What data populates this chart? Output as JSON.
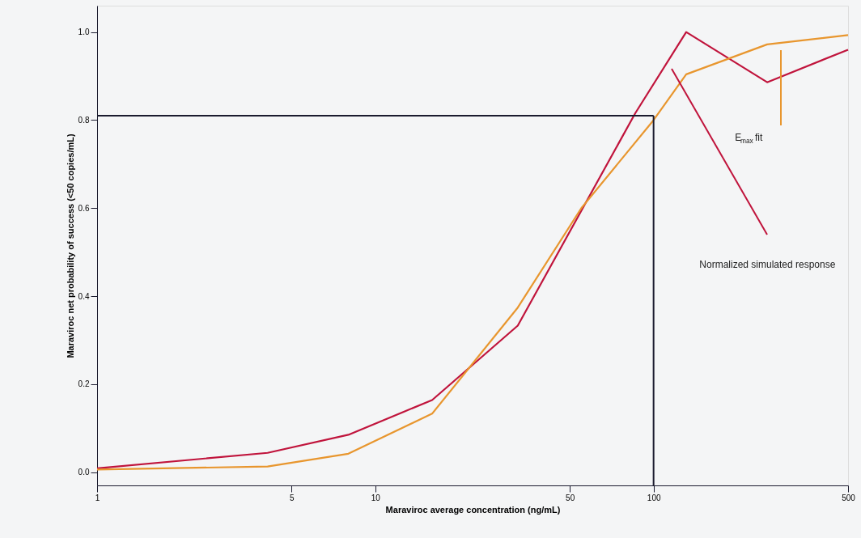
{
  "chart_data": {
    "type": "line",
    "xlabel": "Maraviroc average concentration (ng/mL)",
    "ylabel": "Maraviroc net probability of success (<50 copies/mL)",
    "series": [
      {
        "color": "#c0143c",
        "x": [
          1,
          4.1,
          8,
          16,
          32.5,
          86,
          131,
          256,
          500
        ],
        "values": [
          0.009,
          0.044,
          0.085,
          0.164,
          0.333,
          0.816,
          1.0,
          0.886,
          0.96
        ]
      },
      {
        "color": "#e8962e",
        "x": [
          1,
          4.1,
          8,
          16,
          32.5,
          55,
          100,
          131,
          256,
          500
        ],
        "values": [
          0.006,
          0.013,
          0.042,
          0.133,
          0.374,
          0.6,
          0.8,
          0.904,
          0.972,
          0.993
        ]
      }
    ],
    "log": "x",
    "xlim": [
      1,
      500
    ],
    "xticks": [
      1,
      5,
      10,
      50,
      100,
      500
    ],
    "ylim": [
      -0.03,
      1.06
    ],
    "yticks": [
      {
        "value": 0,
        "label": "0.0"
      },
      {
        "value": 0.2,
        "label": "0.2"
      },
      {
        "value": 0.4,
        "label": "0.4"
      },
      {
        "value": 0.6,
        "label": "0.6"
      },
      {
        "value": 0.8,
        "label": "0.8"
      },
      {
        "value": 1,
        "label": "1.0"
      }
    ],
    "grid": false,
    "marker": "none",
    "line_style": "solid",
    "ref_lines": [
      {
        "axis": "x",
        "value": 100,
        "color": "#1a1a2e"
      },
      {
        "axis": "y",
        "value": 0.81,
        "color": "#1a1a2e"
      }
    ],
    "annotations": [
      "Normalized simulated response",
      "E$_{max}$ fit"
    ]
  }
}
